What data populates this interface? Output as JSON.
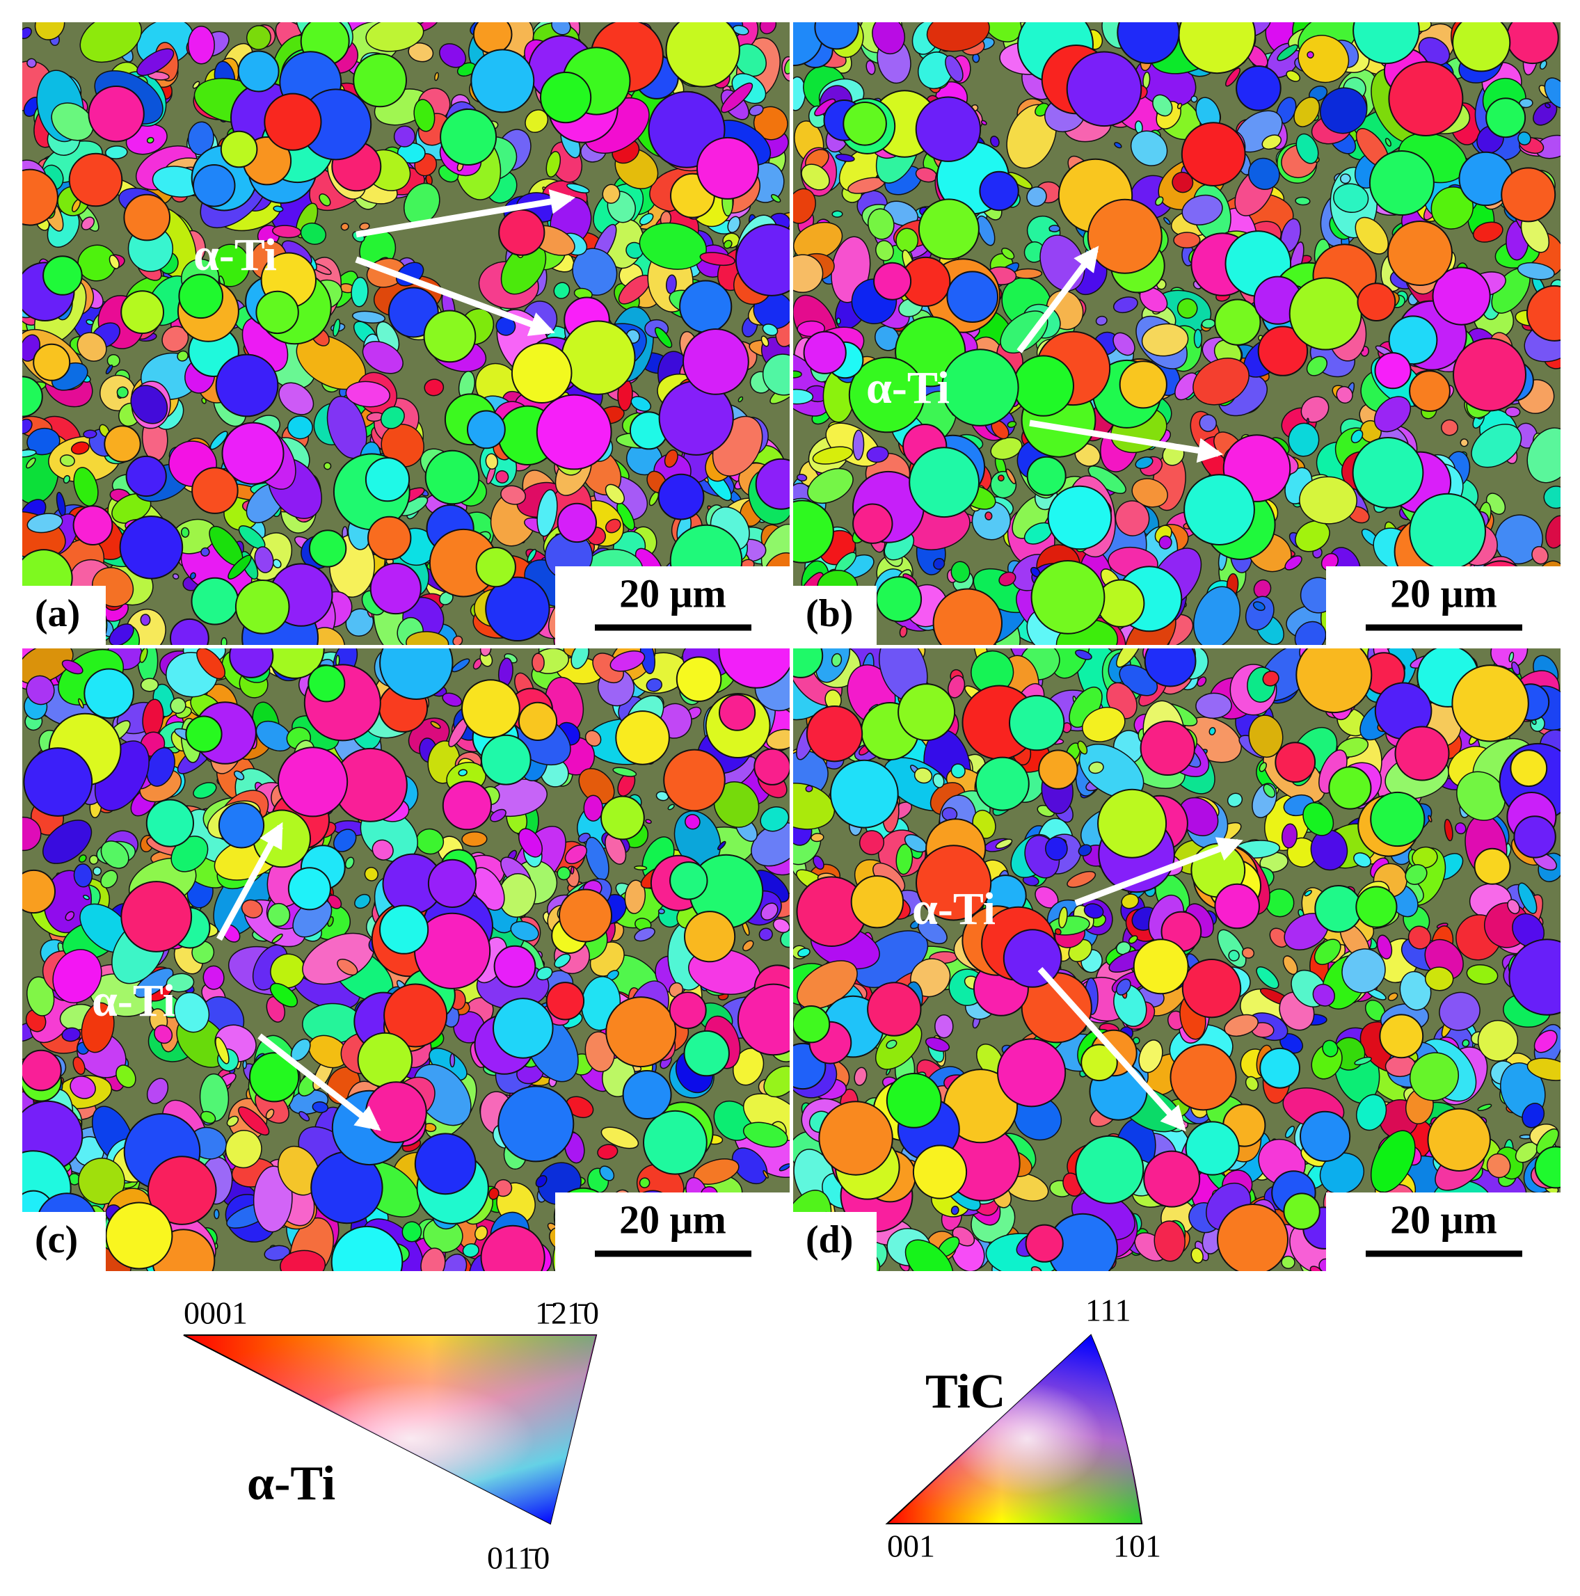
{
  "panels": [
    {
      "label": "(a)",
      "scale_bar": "20 μm",
      "annotation": "α-Ti"
    },
    {
      "label": "(b)",
      "scale_bar": "20 μm",
      "annotation": "α-Ti"
    },
    {
      "label": "(c)",
      "scale_bar": "20 μm",
      "annotation": "α-Ti"
    },
    {
      "label": "(d)",
      "scale_bar": "20 μm",
      "annotation": "α-Ti"
    }
  ],
  "legends": [
    {
      "title": "α-Ti",
      "corners": [
        "0001",
        "1̄21̄0",
        "011̄0"
      ]
    },
    {
      "title": "TiC",
      "corners": [
        "111",
        "001",
        "101"
      ]
    }
  ]
}
